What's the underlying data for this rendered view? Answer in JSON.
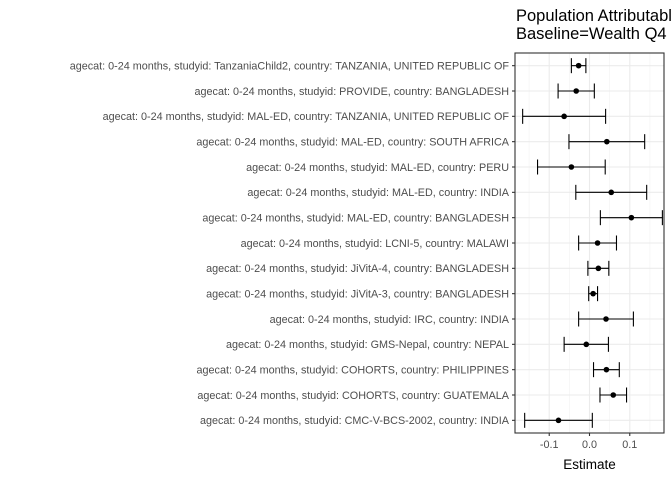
{
  "chart_data": {
    "type": "scatter",
    "subtype": "forest-plot",
    "title_lines": [
      "Population Attributable",
      "Baseline=Wealth Q4"
    ],
    "xlabel": "Estimate",
    "ylabel": "",
    "xlim": [
      -0.185,
      0.185
    ],
    "x_ticks": [
      -0.1,
      0.0,
      0.1
    ],
    "x_tick_labels": [
      "-0.1",
      "0.0",
      "0.1"
    ],
    "grid": true,
    "theme": "bw",
    "point_color": "#000000",
    "rows": [
      {
        "label": "agecat: 0-24 months, studyid: TanzaniaChild2, country: TANZANIA, UNITED REPUBLIC OF",
        "estimate": -0.027,
        "lower": -0.045,
        "upper": -0.009
      },
      {
        "label": "agecat: 0-24 months, studyid: PROVIDE, country: BANGLADESH",
        "estimate": -0.033,
        "lower": -0.078,
        "upper": 0.012
      },
      {
        "label": "agecat: 0-24 months, studyid: MAL-ED, country: TANZANIA, UNITED REPUBLIC OF",
        "estimate": -0.063,
        "lower": -0.166,
        "upper": 0.04
      },
      {
        "label": "agecat: 0-24 months, studyid: MAL-ED, country: SOUTH AFRICA",
        "estimate": 0.043,
        "lower": -0.051,
        "upper": 0.137
      },
      {
        "label": "agecat: 0-24 months, studyid: MAL-ED, country: PERU",
        "estimate": -0.045,
        "lower": -0.129,
        "upper": 0.039
      },
      {
        "label": "agecat: 0-24 months, studyid: MAL-ED, country: INDIA",
        "estimate": 0.054,
        "lower": -0.034,
        "upper": 0.142
      },
      {
        "label": "agecat: 0-24 months, studyid: MAL-ED, country: BANGLADESH",
        "estimate": 0.104,
        "lower": 0.027,
        "upper": 0.181
      },
      {
        "label": "agecat: 0-24 months, studyid: LCNI-5, country: MALAWI",
        "estimate": 0.02,
        "lower": -0.027,
        "upper": 0.067
      },
      {
        "label": "agecat: 0-24 months, studyid: JiVitA-4, country: BANGLADESH",
        "estimate": 0.022,
        "lower": -0.004,
        "upper": 0.048
      },
      {
        "label": "agecat: 0-24 months, studyid: JiVitA-3, country: BANGLADESH",
        "estimate": 0.009,
        "lower": -0.002,
        "upper": 0.02
      },
      {
        "label": "agecat: 0-24 months, studyid: IRC, country: INDIA",
        "estimate": 0.041,
        "lower": -0.027,
        "upper": 0.109
      },
      {
        "label": "agecat: 0-24 months, studyid: GMS-Nepal, country: NEPAL",
        "estimate": -0.008,
        "lower": -0.063,
        "upper": 0.047
      },
      {
        "label": "agecat: 0-24 months, studyid: COHORTS, country: PHILIPPINES",
        "estimate": 0.042,
        "lower": 0.01,
        "upper": 0.074
      },
      {
        "label": "agecat: 0-24 months, studyid: COHORTS, country: GUATEMALA",
        "estimate": 0.059,
        "lower": 0.026,
        "upper": 0.092
      },
      {
        "label": "agecat: 0-24 months, studyid: CMC-V-BCS-2002, country: INDIA",
        "estimate": -0.077,
        "lower": -0.161,
        "upper": 0.007
      }
    ]
  }
}
